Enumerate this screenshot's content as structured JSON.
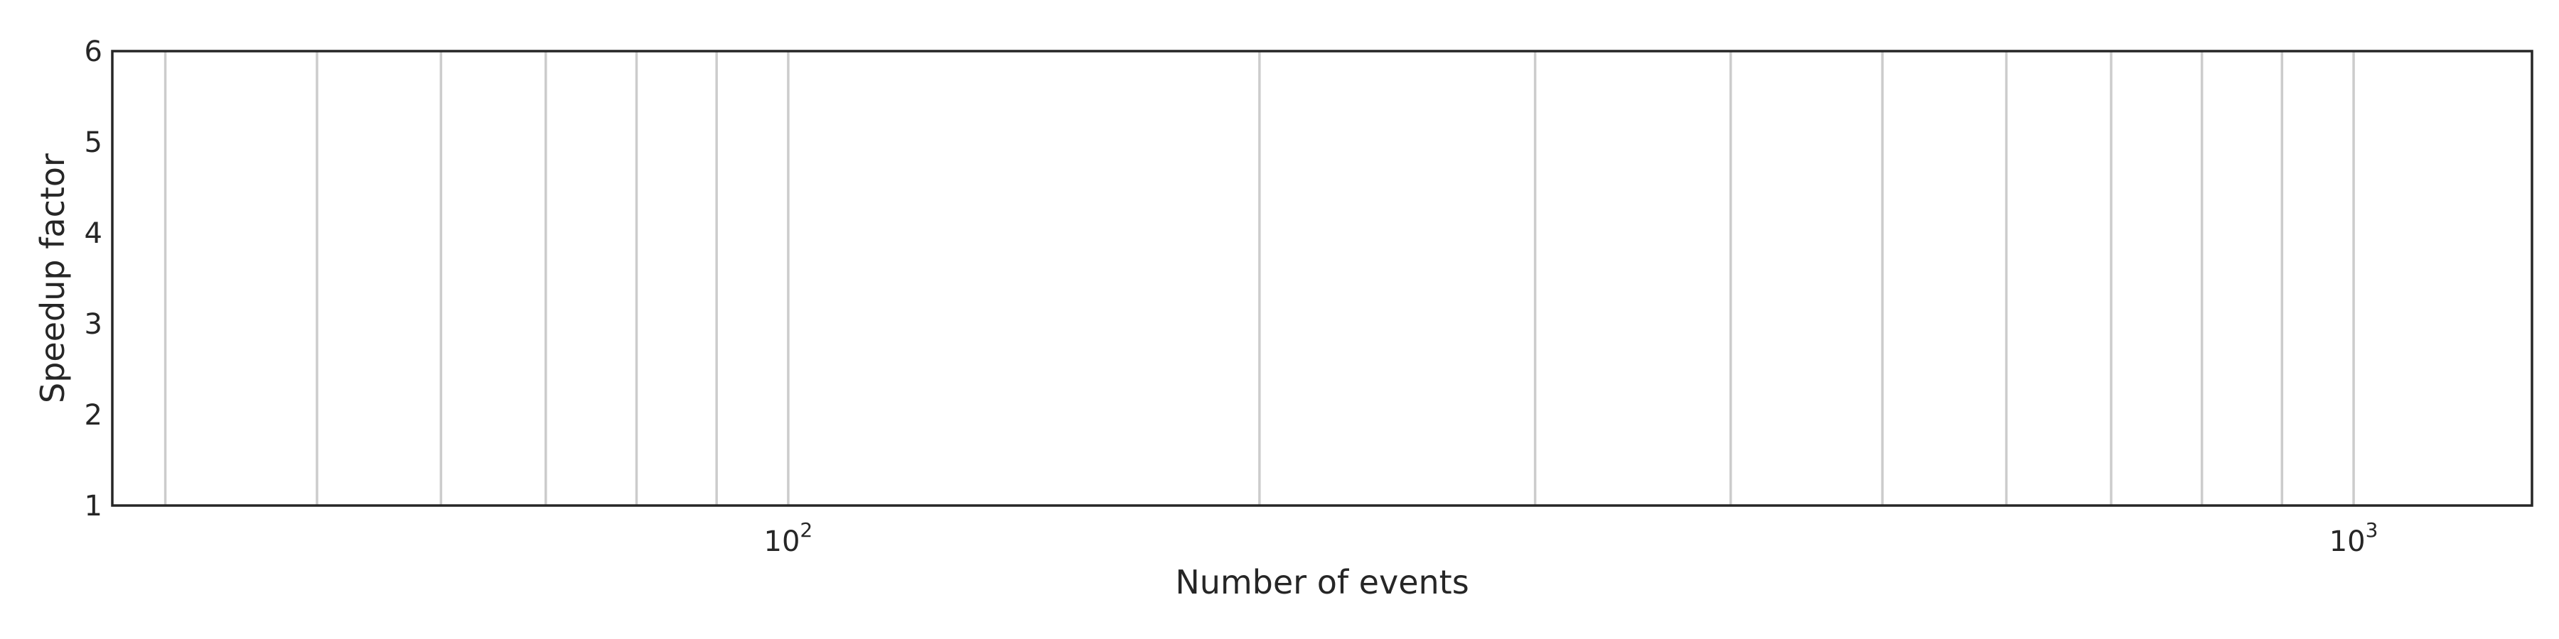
{
  "chart_data": {
    "type": "line",
    "title": "",
    "xlabel": "Number of events",
    "ylabel": "Speedup factor",
    "xscale": "log",
    "xlim": [
      37,
      1300
    ],
    "ylim": [
      1,
      6
    ],
    "x_major_ticks": [
      {
        "value": 100,
        "base": "10",
        "exponent": "2"
      },
      {
        "value": 1000,
        "base": "10",
        "exponent": "3"
      }
    ],
    "x_minor_gridlines": [
      40,
      50,
      60,
      70,
      80,
      90,
      100,
      200,
      300,
      400,
      500,
      600,
      700,
      800,
      900,
      1000
    ],
    "y_ticks": [
      "1",
      "2",
      "3",
      "4",
      "5",
      "6"
    ],
    "grid": "vertical",
    "series": []
  }
}
